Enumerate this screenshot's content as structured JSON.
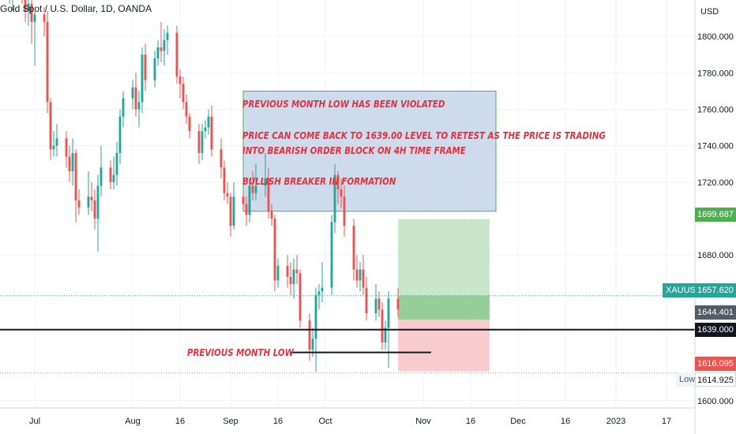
{
  "chart_title": "Gold Spot / U.S. Dollar, 1D, OANDA",
  "currency": "USD",
  "colors": {
    "up": "#26a69a",
    "down": "#ef5350",
    "annotation_text": "#e8303d",
    "box_fill": "#c9d7ea",
    "box_border": "#4caf50",
    "profit_zone": "#c8e6c9",
    "profit_zone_dark": "#98cf98",
    "loss_zone": "#f9cdd0"
  },
  "annotations": {
    "box_line_1": "PREVIOUS MONTH LOW HAS BEEN VIOLATED",
    "box_line_2": "PRICE CAN COME BACK TO 1639.00 LEVEL TO RETEST AS THE PRICE IS TRADING",
    "box_line_3": "INTO BEARISH ORDER BLOCK ON 4H TIME FRAME",
    "box_line_4": "BULLISH BREAKER IN FORMATION",
    "prev_month_low": "PREVIOUS MONTH LOW"
  },
  "price_tags": {
    "target": "1699.687",
    "symbol": "XAUUSD",
    "current": "1657.620",
    "level_a": "1644.401",
    "level_b": "1639.000",
    "stop": "1616.095",
    "low_label": "Low",
    "low_value": "1614.925"
  },
  "chart_data": {
    "type": "candlestick",
    "title": "Gold Spot / U.S. Dollar, 1D, OANDA",
    "y_ticks": [
      "1800.000",
      "1780.000",
      "1760.000",
      "1740.000",
      "1720.000",
      "1680.000",
      "1600.000"
    ],
    "x_ticks": [
      "Jul",
      "Aug",
      "16",
      "Sep",
      "16",
      "Oct",
      "Nov",
      "16",
      "Dec",
      "16",
      "2023",
      "17"
    ],
    "x_tick_dates": [
      "2022-07-01",
      "2022-08-01",
      "2022-08-16",
      "2022-09-01",
      "2022-09-16",
      "2022-10-01",
      "2022-11-01",
      "2022-11-16",
      "2022-12-01",
      "2022-12-16",
      "2023-01-01",
      "2023-01-17"
    ],
    "ylim": [
      1596,
      1820
    ],
    "xlim": [
      "2022-06-20",
      "2023-01-26"
    ],
    "candles": [
      {
        "d": "2022-06-22",
        "o": 1838,
        "h": 1842,
        "l": 1826,
        "c": 1834
      },
      {
        "d": "2022-06-23",
        "o": 1834,
        "h": 1838,
        "l": 1818,
        "c": 1822
      },
      {
        "d": "2022-06-24",
        "o": 1822,
        "h": 1830,
        "l": 1814,
        "c": 1826
      },
      {
        "d": "2022-06-27",
        "o": 1826,
        "h": 1832,
        "l": 1818,
        "c": 1822
      },
      {
        "d": "2022-06-28",
        "o": 1822,
        "h": 1828,
        "l": 1808,
        "c": 1814
      },
      {
        "d": "2022-06-29",
        "o": 1814,
        "h": 1822,
        "l": 1806,
        "c": 1818
      },
      {
        "d": "2022-06-30",
        "o": 1818,
        "h": 1822,
        "l": 1796,
        "c": 1808
      },
      {
        "d": "2022-07-01",
        "o": 1808,
        "h": 1814,
        "l": 1784,
        "c": 1812
      },
      {
        "d": "2022-07-04",
        "o": 1812,
        "h": 1816,
        "l": 1800,
        "c": 1808
      },
      {
        "d": "2022-07-05",
        "o": 1808,
        "h": 1814,
        "l": 1758,
        "c": 1764
      },
      {
        "d": "2022-07-06",
        "o": 1764,
        "h": 1766,
        "l": 1732,
        "c": 1738
      },
      {
        "d": "2022-07-07",
        "o": 1738,
        "h": 1748,
        "l": 1734,
        "c": 1740
      },
      {
        "d": "2022-07-08",
        "o": 1740,
        "h": 1752,
        "l": 1734,
        "c": 1744
      },
      {
        "d": "2022-07-11",
        "o": 1744,
        "h": 1748,
        "l": 1728,
        "c": 1734
      },
      {
        "d": "2022-07-12",
        "o": 1734,
        "h": 1740,
        "l": 1720,
        "c": 1726
      },
      {
        "d": "2022-07-13",
        "o": 1726,
        "h": 1744,
        "l": 1718,
        "c": 1736
      },
      {
        "d": "2022-07-14",
        "o": 1736,
        "h": 1738,
        "l": 1698,
        "c": 1710
      },
      {
        "d": "2022-07-15",
        "o": 1710,
        "h": 1716,
        "l": 1702,
        "c": 1706
      },
      {
        "d": "2022-07-18",
        "o": 1706,
        "h": 1726,
        "l": 1702,
        "c": 1712
      },
      {
        "d": "2022-07-19",
        "o": 1712,
        "h": 1720,
        "l": 1704,
        "c": 1710
      },
      {
        "d": "2022-07-20",
        "o": 1710,
        "h": 1716,
        "l": 1694,
        "c": 1700
      },
      {
        "d": "2022-07-21",
        "o": 1700,
        "h": 1724,
        "l": 1682,
        "c": 1718
      },
      {
        "d": "2022-07-22",
        "o": 1718,
        "h": 1740,
        "l": 1712,
        "c": 1728
      },
      {
        "d": "2022-07-25",
        "o": 1728,
        "h": 1732,
        "l": 1716,
        "c": 1720
      },
      {
        "d": "2022-07-26",
        "o": 1720,
        "h": 1734,
        "l": 1716,
        "c": 1724
      },
      {
        "d": "2022-07-27",
        "o": 1724,
        "h": 1742,
        "l": 1718,
        "c": 1736
      },
      {
        "d": "2022-07-28",
        "o": 1736,
        "h": 1760,
        "l": 1730,
        "c": 1756
      },
      {
        "d": "2022-07-29",
        "o": 1756,
        "h": 1770,
        "l": 1750,
        "c": 1766
      },
      {
        "d": "2022-08-01",
        "o": 1766,
        "h": 1776,
        "l": 1760,
        "c": 1772
      },
      {
        "d": "2022-08-02",
        "o": 1772,
        "h": 1780,
        "l": 1756,
        "c": 1760
      },
      {
        "d": "2022-08-03",
        "o": 1760,
        "h": 1770,
        "l": 1750,
        "c": 1764
      },
      {
        "d": "2022-08-04",
        "o": 1764,
        "h": 1794,
        "l": 1758,
        "c": 1790
      },
      {
        "d": "2022-08-05",
        "o": 1790,
        "h": 1796,
        "l": 1770,
        "c": 1776
      },
      {
        "d": "2022-08-08",
        "o": 1776,
        "h": 1792,
        "l": 1772,
        "c": 1788
      },
      {
        "d": "2022-08-09",
        "o": 1788,
        "h": 1798,
        "l": 1784,
        "c": 1794
      },
      {
        "d": "2022-08-10",
        "o": 1794,
        "h": 1808,
        "l": 1786,
        "c": 1792
      },
      {
        "d": "2022-08-11",
        "o": 1792,
        "h": 1804,
        "l": 1784,
        "c": 1798
      },
      {
        "d": "2022-08-12",
        "o": 1798,
        "h": 1806,
        "l": 1790,
        "c": 1802
      },
      {
        "d": "2022-08-15",
        "o": 1802,
        "h": 1806,
        "l": 1774,
        "c": 1778
      },
      {
        "d": "2022-08-16",
        "o": 1778,
        "h": 1782,
        "l": 1766,
        "c": 1774
      },
      {
        "d": "2022-08-17",
        "o": 1774,
        "h": 1778,
        "l": 1760,
        "c": 1764
      },
      {
        "d": "2022-08-18",
        "o": 1764,
        "h": 1768,
        "l": 1752,
        "c": 1756
      },
      {
        "d": "2022-08-19",
        "o": 1756,
        "h": 1758,
        "l": 1744,
        "c": 1748
      },
      {
        "d": "2022-08-22",
        "o": 1748,
        "h": 1752,
        "l": 1730,
        "c": 1736
      },
      {
        "d": "2022-08-23",
        "o": 1736,
        "h": 1752,
        "l": 1732,
        "c": 1748
      },
      {
        "d": "2022-08-24",
        "o": 1748,
        "h": 1754,
        "l": 1744,
        "c": 1750
      },
      {
        "d": "2022-08-25",
        "o": 1750,
        "h": 1760,
        "l": 1746,
        "c": 1756
      },
      {
        "d": "2022-08-26",
        "o": 1756,
        "h": 1762,
        "l": 1734,
        "c": 1738
      },
      {
        "d": "2022-08-29",
        "o": 1738,
        "h": 1744,
        "l": 1722,
        "c": 1728
      },
      {
        "d": "2022-08-30",
        "o": 1728,
        "h": 1732,
        "l": 1710,
        "c": 1714
      },
      {
        "d": "2022-08-31",
        "o": 1714,
        "h": 1720,
        "l": 1708,
        "c": 1712
      },
      {
        "d": "2022-09-01",
        "o": 1712,
        "h": 1714,
        "l": 1690,
        "c": 1696
      },
      {
        "d": "2022-09-02",
        "o": 1696,
        "h": 1720,
        "l": 1694,
        "c": 1712
      },
      {
        "d": "2022-09-05",
        "o": 1712,
        "h": 1714,
        "l": 1704,
        "c": 1708
      },
      {
        "d": "2022-09-06",
        "o": 1708,
        "h": 1712,
        "l": 1696,
        "c": 1702
      },
      {
        "d": "2022-09-07",
        "o": 1702,
        "h": 1722,
        "l": 1698,
        "c": 1718
      },
      {
        "d": "2022-09-08",
        "o": 1718,
        "h": 1726,
        "l": 1710,
        "c": 1714
      },
      {
        "d": "2022-09-09",
        "o": 1714,
        "h": 1730,
        "l": 1710,
        "c": 1718
      },
      {
        "d": "2022-09-12",
        "o": 1718,
        "h": 1736,
        "l": 1712,
        "c": 1722
      },
      {
        "d": "2022-09-13",
        "o": 1722,
        "h": 1728,
        "l": 1700,
        "c": 1704
      },
      {
        "d": "2022-09-14",
        "o": 1704,
        "h": 1708,
        "l": 1696,
        "c": 1700
      },
      {
        "d": "2022-09-15",
        "o": 1700,
        "h": 1702,
        "l": 1660,
        "c": 1666
      },
      {
        "d": "2022-09-16",
        "o": 1666,
        "h": 1678,
        "l": 1662,
        "c": 1674
      },
      {
        "d": "2022-09-19",
        "o": 1674,
        "h": 1680,
        "l": 1662,
        "c": 1668
      },
      {
        "d": "2022-09-20",
        "o": 1668,
        "h": 1676,
        "l": 1658,
        "c": 1664
      },
      {
        "d": "2022-09-21",
        "o": 1664,
        "h": 1678,
        "l": 1656,
        "c": 1672
      },
      {
        "d": "2022-09-22",
        "o": 1672,
        "h": 1680,
        "l": 1664,
        "c": 1670
      },
      {
        "d": "2022-09-23",
        "o": 1670,
        "h": 1672,
        "l": 1640,
        "c": 1644
      },
      {
        "d": "2022-09-26",
        "o": 1644,
        "h": 1648,
        "l": 1622,
        "c": 1628
      },
      {
        "d": "2022-09-27",
        "o": 1628,
        "h": 1640,
        "l": 1624,
        "c": 1634
      },
      {
        "d": "2022-09-28",
        "o": 1634,
        "h": 1662,
        "l": 1616,
        "c": 1658
      },
      {
        "d": "2022-09-29",
        "o": 1658,
        "h": 1664,
        "l": 1650,
        "c": 1660
      },
      {
        "d": "2022-09-30",
        "o": 1660,
        "h": 1676,
        "l": 1654,
        "c": 1662
      },
      {
        "d": "2022-10-03",
        "o": 1662,
        "h": 1702,
        "l": 1658,
        "c": 1698
      },
      {
        "d": "2022-10-04",
        "o": 1698,
        "h": 1730,
        "l": 1692,
        "c": 1724
      },
      {
        "d": "2022-10-05",
        "o": 1724,
        "h": 1726,
        "l": 1708,
        "c": 1716
      },
      {
        "d": "2022-10-06",
        "o": 1716,
        "h": 1722,
        "l": 1706,
        "c": 1712
      },
      {
        "d": "2022-10-07",
        "o": 1712,
        "h": 1718,
        "l": 1690,
        "c": 1696
      },
      {
        "d": "2022-10-10",
        "o": 1696,
        "h": 1700,
        "l": 1666,
        "c": 1672
      },
      {
        "d": "2022-10-11",
        "o": 1672,
        "h": 1680,
        "l": 1662,
        "c": 1666
      },
      {
        "d": "2022-10-12",
        "o": 1666,
        "h": 1676,
        "l": 1660,
        "c": 1672
      },
      {
        "d": "2022-10-13",
        "o": 1672,
        "h": 1680,
        "l": 1658,
        "c": 1662
      },
      {
        "d": "2022-10-14",
        "o": 1662,
        "h": 1668,
        "l": 1644,
        "c": 1648
      },
      {
        "d": "2022-10-17",
        "o": 1648,
        "h": 1664,
        "l": 1644,
        "c": 1656
      },
      {
        "d": "2022-10-18",
        "o": 1656,
        "h": 1660,
        "l": 1646,
        "c": 1650
      },
      {
        "d": "2022-10-19",
        "o": 1650,
        "h": 1654,
        "l": 1628,
        "c": 1632
      },
      {
        "d": "2022-10-20",
        "o": 1632,
        "h": 1644,
        "l": 1628,
        "c": 1640
      },
      {
        "d": "2022-10-21",
        "o": 1640,
        "h": 1660,
        "l": 1618,
        "c": 1656
      },
      {
        "d": "2022-10-24",
        "o": 1656,
        "h": 1662,
        "l": 1646,
        "c": 1650
      }
    ],
    "horizontal_levels": [
      1639.0,
      1644.401
    ],
    "prev_month_low_level": 1626.5,
    "prev_month_low_span": [
      "2022-09-26",
      "2022-10-24"
    ],
    "annotation_box": {
      "from": "2022-09-05",
      "to": "2022-11-24",
      "top": 1770,
      "bottom": 1704
    },
    "position": {
      "from": "2022-10-24",
      "to": "2022-11-22",
      "target": 1699.687,
      "entry": 1644.401,
      "current": 1657.62,
      "stop": 1616.095
    },
    "last_price": 1657.62
  }
}
